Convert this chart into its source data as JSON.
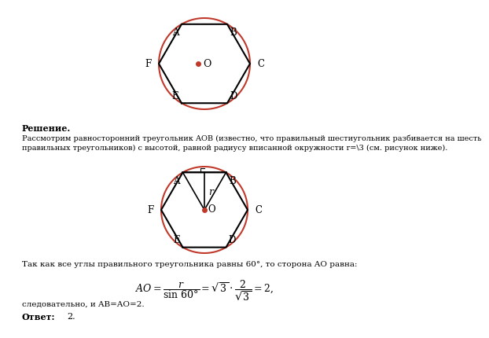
{
  "bg_color": "#ffffff",
  "hex_color": "#000000",
  "circle_color": "#c0392b",
  "dot_color": "#c0392b",
  "fig_width": 5.0,
  "fig_height": 4.11,
  "solution_title": "Решение.",
  "solution_text1": "Рассмотрим равносторонний треугольник AOB (известно, что правильный шестиугольник разбивается на шесть",
  "solution_text2": "правильных треугольников) с высотой, равной радиусу вписанной окружности r=\\3 (см. рисунок ниже).",
  "text_after": "Так как все углы правильного треугольника равны 60°, то сторона AO равна:",
  "conclusion": "следовательно, и AB=AO=2.",
  "answer": "Ответ: 2."
}
